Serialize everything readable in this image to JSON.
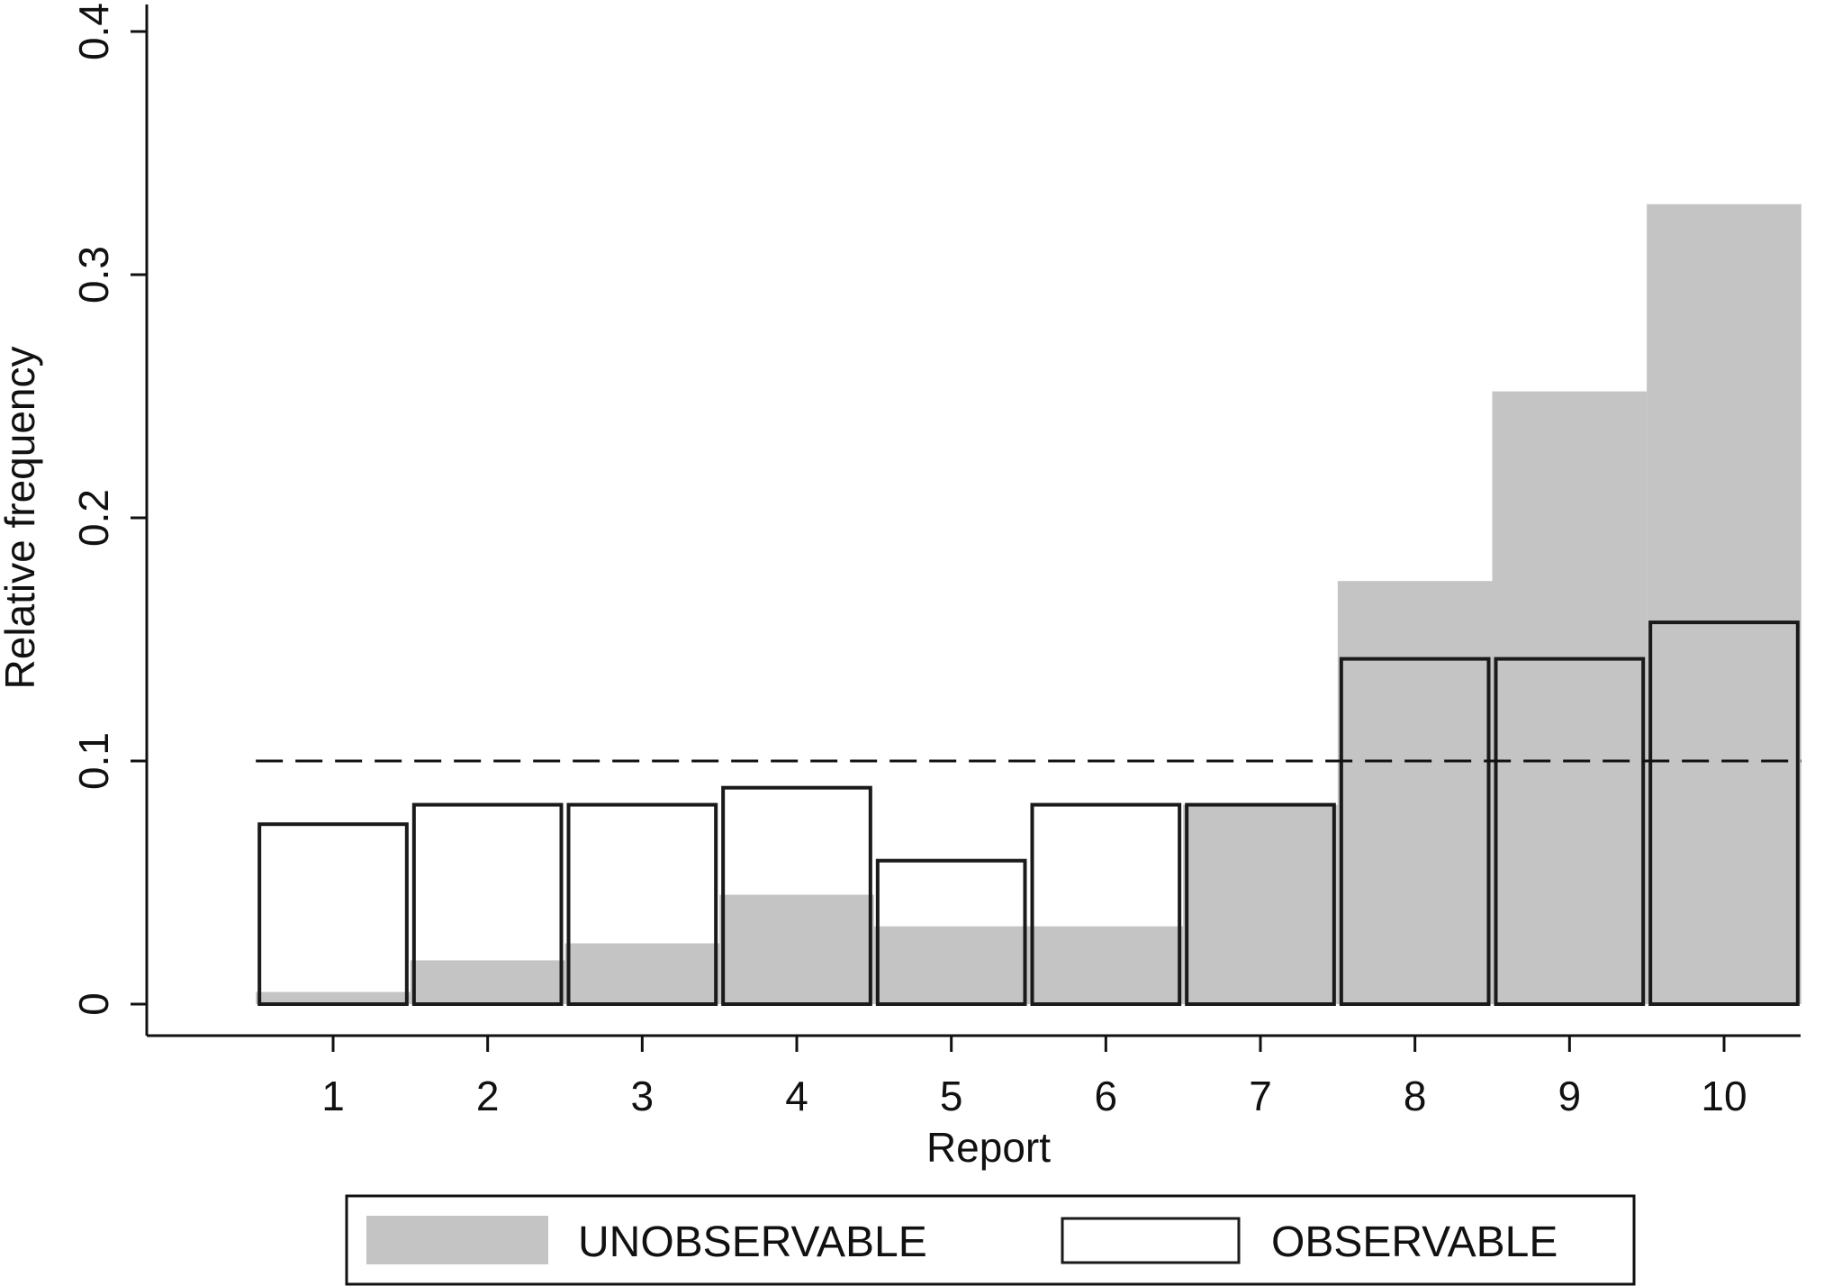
{
  "chart_data": {
    "type": "bar",
    "xlabel": "Report",
    "ylabel": "Relative frequency",
    "categories": [
      "1",
      "2",
      "3",
      "4",
      "5",
      "6",
      "7",
      "8",
      "9",
      "10"
    ],
    "series": [
      {
        "name": "UNOBSERVABLE",
        "style": "filled",
        "color": "#c4c4c4",
        "values": [
          0.005,
          0.018,
          0.025,
          0.045,
          0.032,
          0.032,
          0.082,
          0.174,
          0.252,
          0.329
        ]
      },
      {
        "name": "OBSERVABLE",
        "style": "outline",
        "color": "#1a1a1a",
        "values": [
          0.074,
          0.082,
          0.082,
          0.089,
          0.059,
          0.082,
          0.082,
          0.142,
          0.142,
          0.157
        ]
      }
    ],
    "reference_line": {
      "y": 0.1,
      "style": "dashed"
    },
    "ylim": [
      0,
      0.4
    ],
    "yticks": [
      0,
      0.1,
      0.2,
      0.3,
      0.4
    ],
    "ytick_labels": [
      "0",
      "0.1",
      "0.2",
      "0.3",
      "0.4"
    ],
    "grid": false,
    "legend_position": "bottom"
  }
}
